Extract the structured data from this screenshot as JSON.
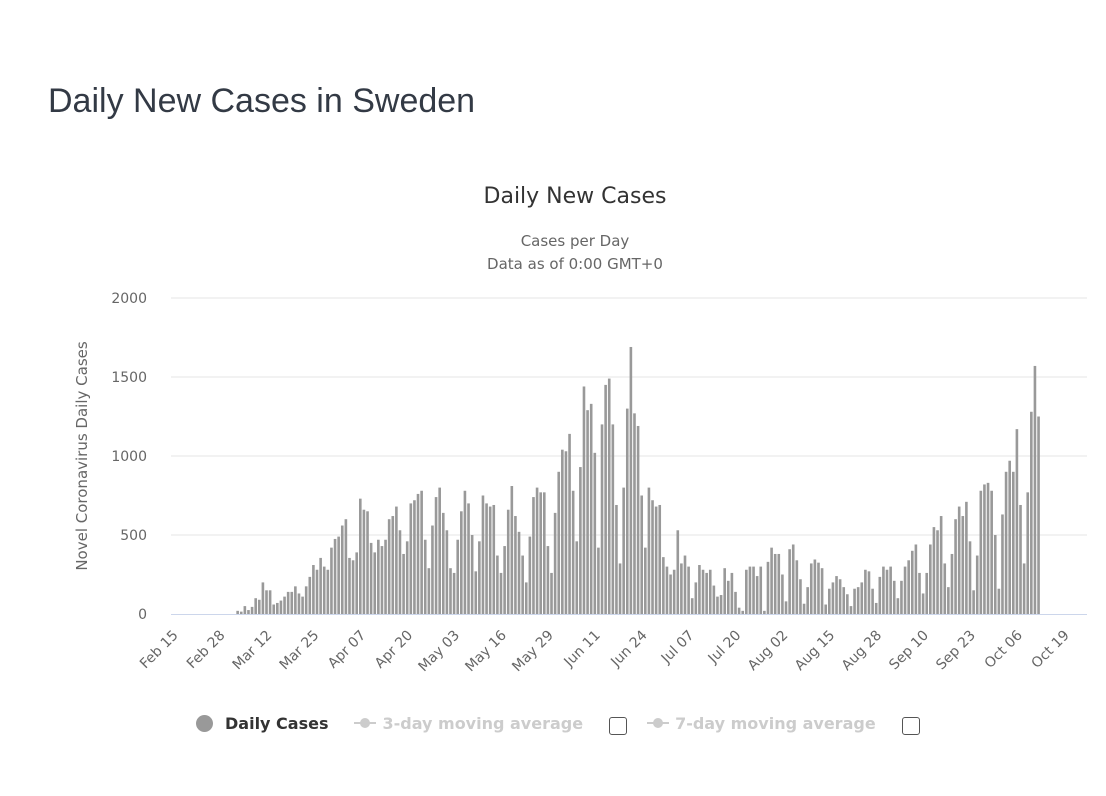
{
  "page": {
    "title": "Daily New Cases in Sweden"
  },
  "legend": {
    "items": [
      {
        "label": "Daily Cases",
        "active": true
      },
      {
        "label": "3-day moving average",
        "active": false
      },
      {
        "label": "7-day moving average",
        "active": false
      }
    ]
  },
  "colors": {
    "bar": "#999999",
    "grid": "#e6e6e6",
    "axis": "#ccd6eb",
    "text": "#666666"
  },
  "chart_data": {
    "type": "bar",
    "title": "Daily New Cases",
    "subtitle": [
      "Cases per Day",
      "Data as of 0:00 GMT+0"
    ],
    "xlabel": "",
    "ylabel": "Novel Coronavirus Daily Cases",
    "ylim": [
      0,
      2000
    ],
    "yticks": [
      0,
      500,
      1000,
      1500,
      2000
    ],
    "grid": true,
    "legend_position": "bottom",
    "x_start": "Feb 15",
    "x_tick_labels": [
      "Feb 15",
      "Feb 28",
      "Mar 12",
      "Mar 25",
      "Apr 07",
      "Apr 20",
      "May 03",
      "May 16",
      "May 29",
      "Jun 11",
      "Jun 24",
      "Jul 07",
      "Jul 20",
      "Aug 02",
      "Aug 15",
      "Aug 28",
      "Sep 10",
      "Sep 23",
      "Oct 06",
      "Oct 19"
    ],
    "x_tick_interval_days": 13,
    "series": [
      {
        "name": "Daily Cases",
        "values": [
          0,
          0,
          0,
          0,
          0,
          0,
          0,
          0,
          0,
          0,
          0,
          0,
          0,
          0,
          0,
          0,
          0,
          0,
          20,
          15,
          50,
          25,
          45,
          100,
          90,
          200,
          150,
          150,
          60,
          70,
          85,
          110,
          140,
          140,
          175,
          130,
          110,
          175,
          235,
          310,
          280,
          355,
          300,
          280,
          420,
          475,
          490,
          560,
          600,
          355,
          340,
          390,
          730,
          660,
          650,
          450,
          390,
          470,
          430,
          470,
          600,
          620,
          680,
          530,
          380,
          460,
          700,
          720,
          760,
          780,
          470,
          290,
          560,
          740,
          800,
          640,
          530,
          290,
          260,
          470,
          650,
          780,
          700,
          500,
          270,
          460,
          750,
          700,
          680,
          690,
          370,
          260,
          430,
          660,
          810,
          620,
          520,
          370,
          200,
          490,
          740,
          800,
          770,
          770,
          430,
          260,
          640,
          900,
          1040,
          1030,
          1140,
          780,
          460,
          930,
          1440,
          1290,
          1330,
          1020,
          420,
          1200,
          1450,
          1490,
          1200,
          690,
          320,
          800,
          1300,
          1690,
          1270,
          1190,
          750,
          420,
          800,
          720,
          680,
          690,
          360,
          300,
          250,
          280,
          530,
          320,
          370,
          300,
          100,
          200,
          310,
          280,
          260,
          280,
          180,
          110,
          120,
          290,
          210,
          260,
          140,
          40,
          20,
          280,
          300,
          300,
          240,
          300,
          20,
          330,
          420,
          380,
          380,
          250,
          80,
          410,
          440,
          340,
          220,
          65,
          170,
          320,
          345,
          325,
          290,
          60,
          160,
          200,
          240,
          220,
          170,
          125,
          50,
          160,
          170,
          200,
          280,
          270,
          160,
          70,
          235,
          300,
          280,
          300,
          210,
          100,
          210,
          300,
          340,
          400,
          440,
          260,
          130,
          260,
          440,
          550,
          530,
          620,
          320,
          170,
          380,
          600,
          680,
          620,
          710,
          460,
          150,
          370,
          780,
          820,
          830,
          780,
          500,
          160,
          630,
          900,
          970,
          900,
          1170,
          690,
          320,
          770,
          1280,
          1570,
          1250
        ]
      }
    ]
  }
}
